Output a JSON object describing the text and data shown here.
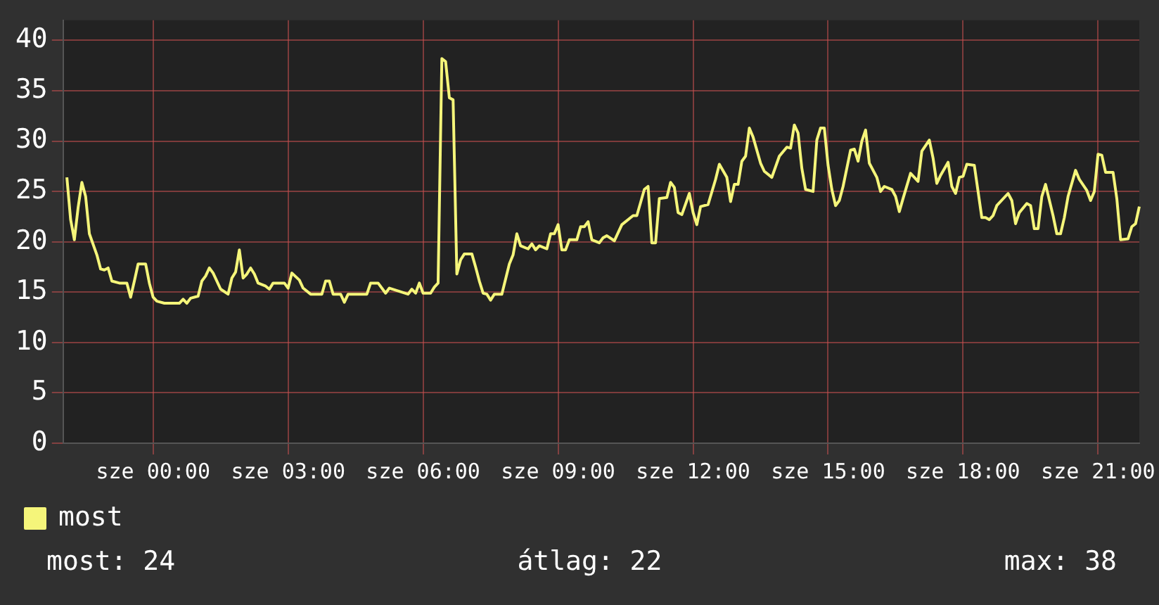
{
  "chart_data": {
    "type": "line",
    "categories": [
      null,
      null,
      null,
      null,
      null,
      null,
      null,
      null,
      null,
      null,
      null,
      null,
      null,
      null,
      null,
      null,
      null,
      null,
      null,
      null,
      null,
      null,
      null,
      null,
      "sze 00:00",
      null,
      null,
      null,
      null,
      null,
      null,
      null,
      null,
      null,
      null,
      null,
      null,
      null,
      null,
      null,
      null,
      null,
      null,
      null,
      null,
      null,
      null,
      null,
      null,
      null,
      null,
      null,
      null,
      null,
      null,
      null,
      null,
      null,
      null,
      null,
      "sze 03:00",
      null,
      null,
      null,
      null,
      null,
      null,
      null,
      null,
      null,
      null,
      null,
      null,
      null,
      null,
      null,
      null,
      null,
      null,
      null,
      null,
      null,
      null,
      null,
      null,
      null,
      null,
      null,
      null,
      null,
      null,
      null,
      null,
      null,
      null,
      null,
      "sze 06:00",
      null,
      null,
      null,
      null,
      null,
      null,
      null,
      null,
      null,
      null,
      null,
      null,
      null,
      null,
      null,
      null,
      null,
      null,
      null,
      null,
      null,
      null,
      null,
      null,
      null,
      null,
      null,
      null,
      null,
      null,
      null,
      null,
      null,
      null,
      null,
      "sze 09:00",
      null,
      null,
      null,
      null,
      null,
      null,
      null,
      null,
      null,
      null,
      null,
      null,
      null,
      null,
      null,
      null,
      null,
      null,
      null,
      null,
      null,
      null,
      null,
      null,
      null,
      null,
      null,
      null,
      null,
      null,
      null,
      null,
      null,
      null,
      null,
      "sze 12:00",
      null,
      null,
      null,
      null,
      null,
      null,
      null,
      null,
      null,
      null,
      null,
      null,
      null,
      null,
      null,
      null,
      null,
      null,
      null,
      null,
      null,
      null,
      null,
      null,
      null,
      null,
      null,
      null,
      null,
      null,
      null,
      null,
      null,
      null,
      null,
      "sze 15:00",
      null,
      null,
      null,
      null,
      null,
      null,
      null,
      null,
      null,
      null,
      null,
      null,
      null,
      null,
      null,
      null,
      null,
      null,
      null,
      null,
      null,
      null,
      null,
      null,
      null,
      null,
      null,
      null,
      null,
      null,
      null,
      null,
      null,
      null,
      null,
      "sze 18:00",
      null,
      null,
      null,
      null,
      null,
      null,
      null,
      null,
      null,
      null,
      null,
      null,
      null,
      null,
      null,
      null,
      null,
      null,
      null,
      null,
      null,
      null,
      null,
      null,
      null,
      null,
      null,
      null,
      null,
      null,
      null,
      null,
      null,
      null,
      null,
      "sze 21:00",
      null,
      null,
      null,
      null,
      null,
      null,
      null,
      null,
      null,
      null,
      null
    ],
    "series": [
      {
        "name": "most",
        "color": "#f5f57a",
        "values": [
          null,
          26.4,
          22.2,
          20.2,
          23.4,
          25.9,
          24.5,
          20.8,
          null,
          18.7,
          17.3,
          17.2,
          17.4,
          16.1,
          null,
          15.9,
          null,
          15.9,
          14.5,
          16.1,
          17.8,
          null,
          17.8,
          15.9,
          14.5,
          14.1,
          null,
          13.9,
          null,
          null,
          null,
          13.9,
          14.3,
          13.9,
          14.4,
          null,
          14.6,
          16.1,
          16.6,
          17.4,
          16.9,
          null,
          15.3,
          null,
          14.8,
          16.4,
          17.0,
          19.2,
          16.4,
          16.8,
          17.4,
          16.8,
          15.9,
          null,
          15.6,
          15.3,
          15.9,
          null,
          null,
          15.9,
          15.4,
          16.9,
          null,
          16.2,
          15.4,
          null,
          14.8,
          null,
          null,
          14.8,
          16.1,
          16.1,
          14.8,
          null,
          14.8,
          14.0,
          14.8,
          null,
          null,
          null,
          null,
          14.8,
          15.9,
          null,
          15.9,
          null,
          14.9,
          15.4,
          null,
          null,
          null,
          null,
          14.8,
          15.3,
          14.9,
          15.9,
          14.9,
          null,
          14.9,
          15.5,
          15.9,
          38.2,
          37.9,
          34.3,
          34.1,
          16.8,
          18.2,
          18.8,
          null,
          18.8,
          17.5,
          16.1,
          14.9,
          14.8,
          14.2,
          14.8,
          null,
          14.8,
          null,
          17.8,
          18.7,
          20.8,
          19.6,
          null,
          19.3,
          19.8,
          19.2,
          19.6,
          null,
          19.3,
          20.8,
          20.8,
          21.7,
          19.2,
          19.2,
          20.2,
          null,
          20.2,
          21.5,
          21.5,
          22.0,
          20.2,
          null,
          19.9,
          20.4,
          20.6,
          null,
          20.1,
          null,
          21.7,
          null,
          null,
          22.6,
          22.6,
          null,
          25.2,
          25.5,
          19.9,
          19.9,
          24.3,
          null,
          24.4,
          25.9,
          25.4,
          22.9,
          22.7,
          null,
          24.8,
          22.9,
          21.7,
          23.5,
          null,
          23.7,
          null,
          26.2,
          27.7,
          null,
          26.4,
          24.0,
          25.7,
          25.7,
          28.0,
          28.5,
          31.3,
          30.4,
          null,
          27.8,
          27.0,
          null,
          26.4,
          null,
          28.5,
          null,
          29.4,
          29.3,
          31.6,
          30.8,
          27.3,
          25.2,
          null,
          25.0,
          30.1,
          31.3,
          31.3,
          27.6,
          25.2,
          23.6,
          24.1,
          25.5,
          null,
          29.1,
          29.2,
          28.0,
          30.0,
          31.1,
          27.8,
          null,
          26.4,
          25.0,
          25.5,
          null,
          25.2,
          24.5,
          23.0,
          24.3,
          null,
          26.8,
          null,
          26.0,
          29.0,
          null,
          30.1,
          28.3,
          25.8,
          26.6,
          null,
          27.9,
          25.5,
          24.8,
          26.4,
          26.5,
          27.7,
          null,
          27.6,
          null,
          22.4,
          22.4,
          22.2,
          22.6,
          23.6,
          null,
          null,
          24.8,
          24.1,
          21.8,
          22.9,
          null,
          23.8,
          23.6,
          21.3,
          21.3,
          24.5,
          25.7,
          null,
          22.6,
          20.8,
          20.8,
          22.4,
          24.5,
          null,
          27.1,
          26.2,
          null,
          25.1,
          24.1,
          25.0,
          28.7,
          28.6,
          26.9,
          null,
          26.9,
          24.3,
          20.2,
          null,
          20.3,
          21.5,
          21.8,
          23.5
        ]
      }
    ],
    "ylim": [
      0,
      42
    ],
    "yticks": [
      0,
      5,
      10,
      15,
      20,
      25,
      30,
      35,
      40
    ],
    "grid": true,
    "legend": "bottom left",
    "marker": "none",
    "line_style": "solid",
    "annotations": [
      "most: 24",
      "átlag: 22",
      "max: 38"
    ]
  }
}
